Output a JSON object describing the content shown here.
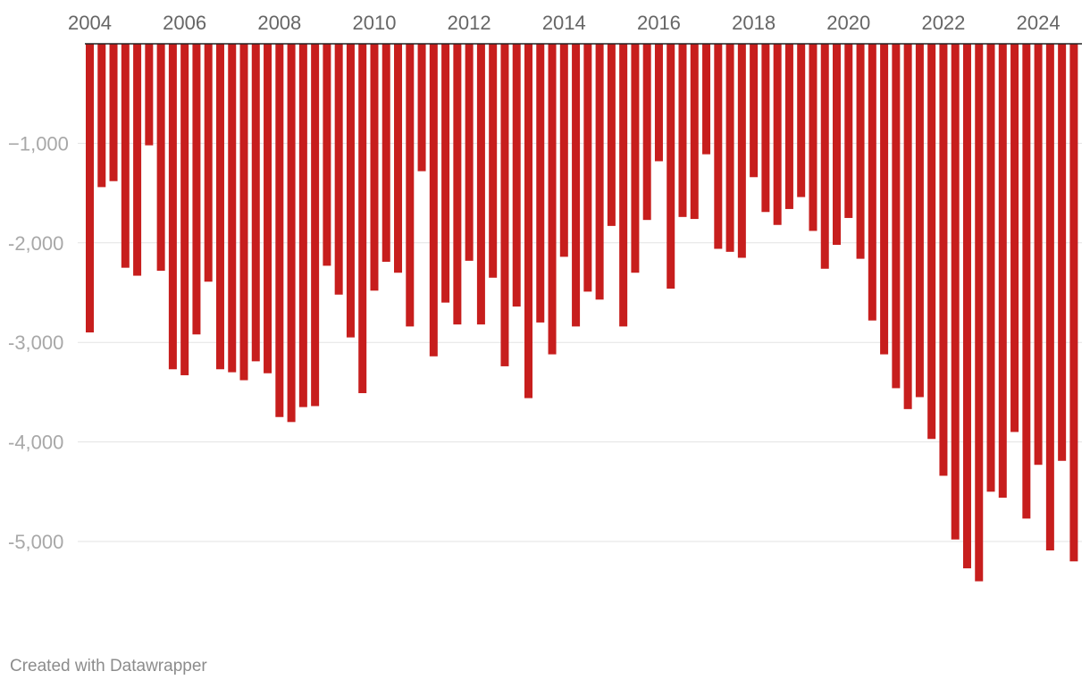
{
  "footer": {
    "credit": "Created with Datawrapper"
  },
  "chart_data": {
    "type": "bar",
    "orientation": "vertical",
    "x_axis_position": "top",
    "x_tick_labels": [
      "2004",
      "2006",
      "2008",
      "2010",
      "2012",
      "2014",
      "2016",
      "2018",
      "2020",
      "2022",
      "2024"
    ],
    "y_tick_labels": [
      "−1,000",
      "-2,000",
      "-3,000",
      "-4,000",
      "-5,000"
    ],
    "y_ticks": [
      -1000,
      -2000,
      -3000,
      -4000,
      -5000
    ],
    "ylim": [
      -6000,
      0
    ],
    "xlim": [
      2004.0,
      2024.875
    ],
    "grid": true,
    "color": "#c71e1d",
    "x": [
      2004.0,
      2004.25,
      2004.5,
      2004.75,
      2005.0,
      2005.25,
      2005.5,
      2005.75,
      2006.0,
      2006.25,
      2006.5,
      2006.75,
      2007.0,
      2007.25,
      2007.5,
      2007.75,
      2008.0,
      2008.25,
      2008.5,
      2008.75,
      2009.0,
      2009.25,
      2009.5,
      2009.75,
      2010.0,
      2010.25,
      2010.5,
      2010.75,
      2011.0,
      2011.25,
      2011.5,
      2011.75,
      2012.0,
      2012.25,
      2012.5,
      2012.75,
      2013.0,
      2013.25,
      2013.5,
      2013.75,
      2014.0,
      2014.25,
      2014.5,
      2014.75,
      2015.0,
      2015.25,
      2015.5,
      2015.75,
      2016.0,
      2016.25,
      2016.5,
      2016.75,
      2017.0,
      2017.25,
      2017.5,
      2017.75,
      2018.0,
      2018.25,
      2018.5,
      2018.75,
      2019.0,
      2019.25,
      2019.5,
      2019.75,
      2020.0,
      2020.25,
      2020.5,
      2020.75,
      2021.0,
      2021.25,
      2021.5,
      2021.75,
      2022.0,
      2022.25,
      2022.5,
      2022.75,
      2023.0,
      2023.25,
      2023.5,
      2023.75,
      2024.0,
      2024.25,
      2024.5,
      2024.75
    ],
    "values": [
      -2900,
      -1440,
      -1380,
      -2250,
      -2330,
      -1020,
      -2280,
      -3270,
      -3330,
      -2920,
      -2390,
      -3270,
      -3300,
      -3380,
      -3190,
      -3310,
      -3750,
      -3800,
      -3650,
      -3640,
      -2230,
      -2520,
      -2950,
      -3510,
      -2480,
      -2190,
      -2300,
      -2840,
      -1280,
      -3140,
      -2600,
      -2820,
      -2180,
      -2820,
      -2350,
      -3240,
      -2640,
      -3560,
      -2800,
      -3120,
      -2140,
      -2840,
      -2490,
      -2570,
      -1830,
      -2840,
      -2300,
      -1770,
      -1180,
      -2460,
      -1740,
      -1760,
      -1110,
      -2060,
      -2090,
      -2150,
      -1340,
      -1690,
      -1820,
      -1660,
      -1540,
      -1880,
      -2260,
      -2020,
      -1750,
      -2160,
      -2780,
      -3120,
      -3460,
      -3670,
      -3550,
      -3970,
      -4340,
      -4980,
      -5270,
      -5400,
      -4500,
      -4560,
      -3900,
      -4770,
      -4230,
      -5090,
      -4190,
      -5200
    ]
  }
}
